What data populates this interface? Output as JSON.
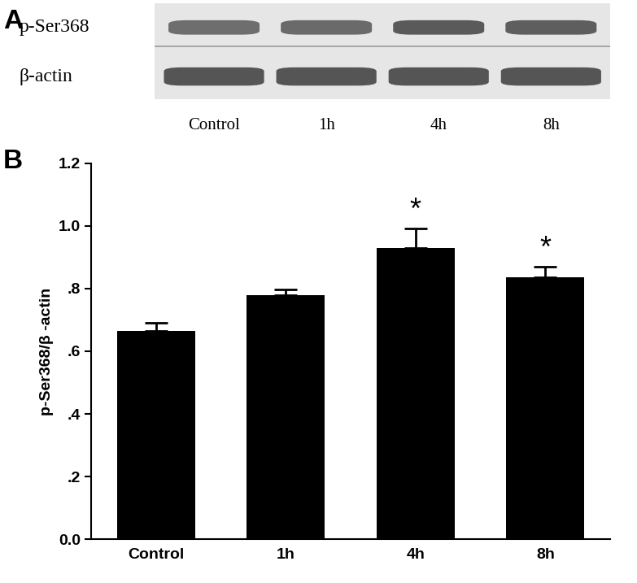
{
  "panel_labels": [
    "A",
    "B"
  ],
  "blot": {
    "rows": [
      "p-Ser368",
      "β-actin"
    ],
    "lanes": [
      "Control",
      "1h",
      "4h",
      "8h"
    ]
  },
  "chart_data": {
    "type": "bar",
    "categories": [
      "Control",
      "1h",
      "4h",
      "8h"
    ],
    "values": [
      0.665,
      0.78,
      0.93,
      0.835
    ],
    "errors": [
      0.025,
      0.018,
      0.062,
      0.035
    ],
    "significance": [
      null,
      null,
      "*",
      "*"
    ],
    "color": "#000000",
    "y_label": "p-Ser368/β -actin",
    "ylim": [
      0,
      1.2
    ],
    "yticks": [
      {
        "value": 0.0,
        "label": "0.0"
      },
      {
        "value": 0.2,
        "label": ".2"
      },
      {
        "value": 0.4,
        "label": ".4"
      },
      {
        "value": 0.6,
        "label": ".6"
      },
      {
        "value": 0.8,
        "label": ".8"
      },
      {
        "value": 1.0,
        "label": "1.0"
      },
      {
        "value": 1.2,
        "label": "1.2"
      }
    ],
    "grid": false
  }
}
